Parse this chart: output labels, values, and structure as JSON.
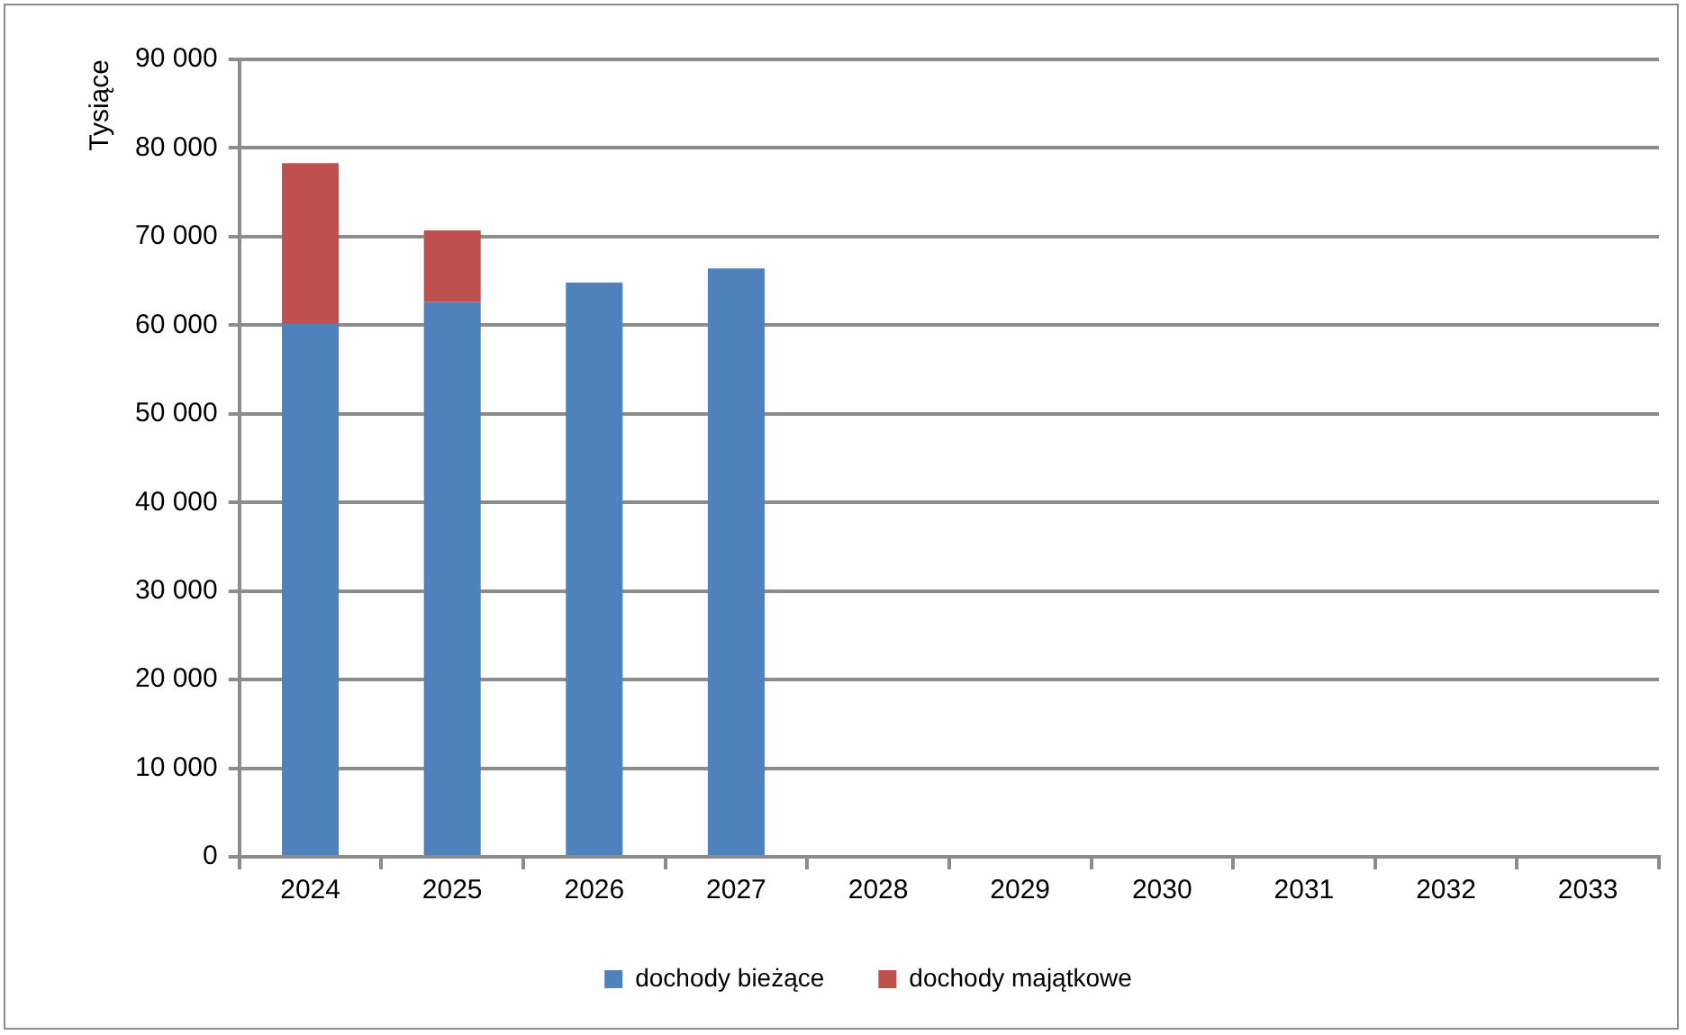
{
  "chart_data": {
    "type": "bar",
    "ylabel": "Tysiące",
    "stacked": true,
    "categories": [
      "2024",
      "2025",
      "2026",
      "2027",
      "2028",
      "2029",
      "2030",
      "2031",
      "2032",
      "2033"
    ],
    "series": [
      {
        "name": "dochody bieżące",
        "color": "#4f81bd",
        "values": [
          60100,
          62600,
          64800,
          66400,
          null,
          null,
          null,
          null,
          null,
          null
        ]
      },
      {
        "name": "dochody majątkowe",
        "color": "#c0504d",
        "values": [
          18200,
          8100,
          null,
          null,
          null,
          null,
          null,
          null,
          null,
          null
        ]
      }
    ],
    "ylim": [
      0,
      90000
    ],
    "yticks": [
      0,
      10000,
      20000,
      30000,
      40000,
      50000,
      60000,
      70000,
      80000,
      90000
    ],
    "grid": "y",
    "legend": "bottom"
  }
}
